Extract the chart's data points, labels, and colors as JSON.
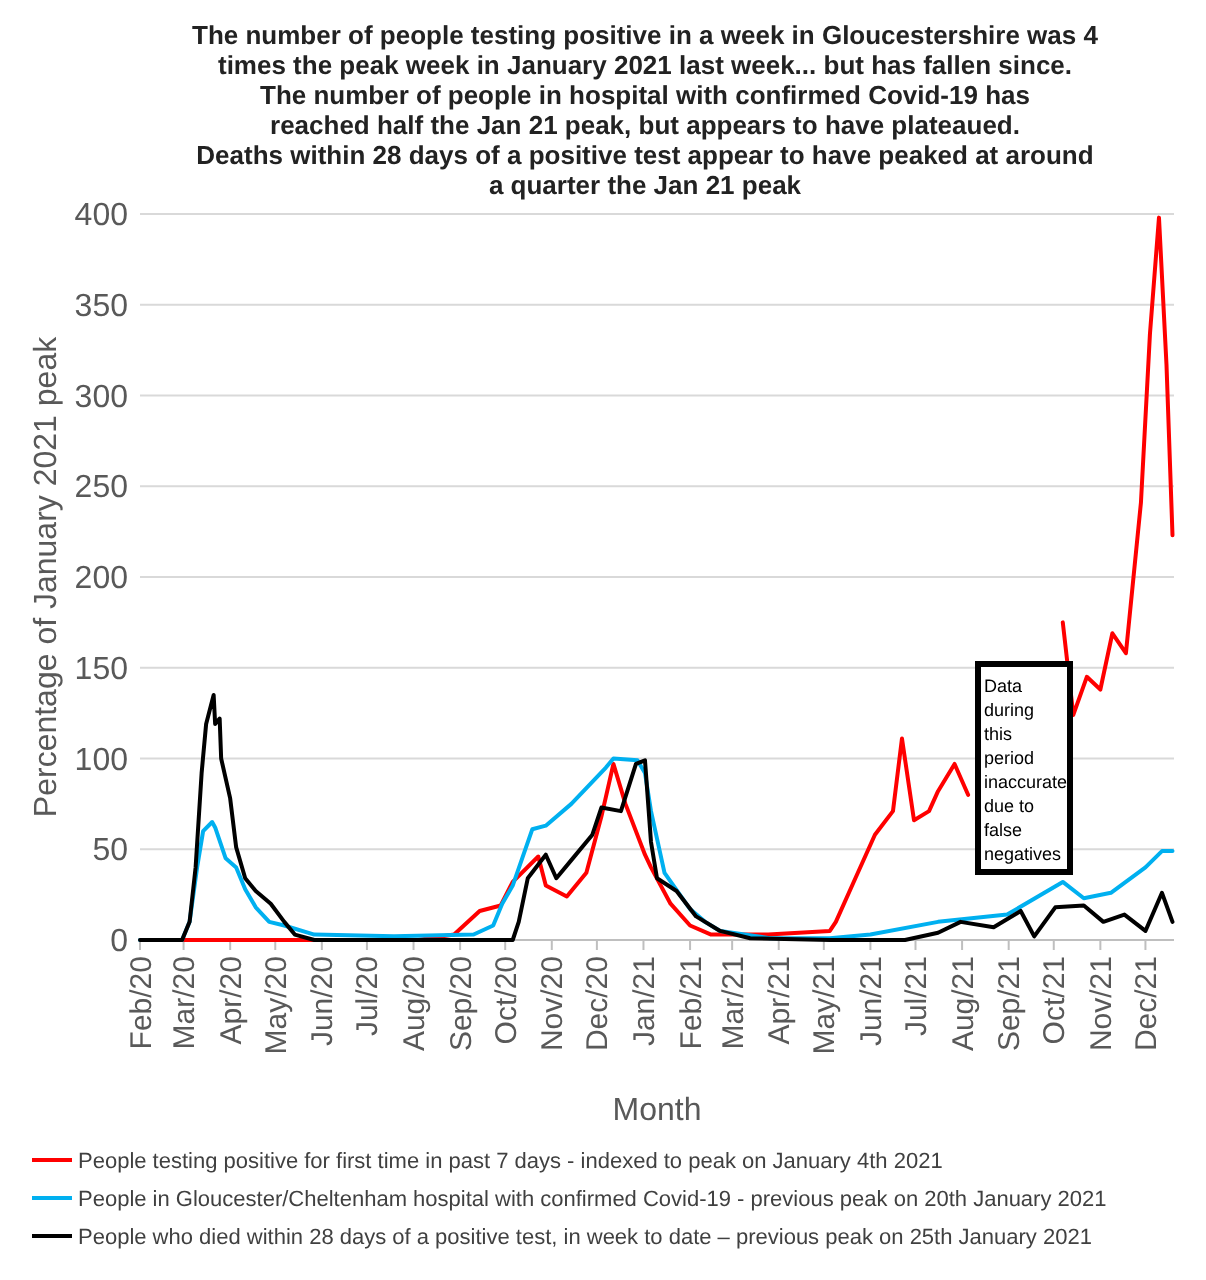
{
  "chart_data": {
    "type": "line",
    "title": "The number of people testing positive in a week in Gloucestershire was 4 times the peak week in January 2021 last week... but has fallen since.",
    "subtitle": "The number of people in hospital with confirmed Covid-19 has reached half the Jan 21 peak, but appears to have plateaued.",
    "xlabel": "Month",
    "ylabel": "Percentage of January 2021 peak",
    "annotations": [
      "Deaths within 28 days of a positive test appear to have peaked at around a quarter the Jan 21 peak",
      "Data during this period inaccurate due to false negatives"
    ],
    "series": [
      {
        "name": "People testing positive for first time in past 7 days - indexed to peak on January 4th 2021",
        "color": "#ff0000",
        "x": [
          "2020-02-29",
          "2020-08-04",
          "2020-08-28",
          "2020-09-14",
          "2020-09-28",
          "2020-10-06",
          "2020-10-23",
          "2020-10-28",
          "2020-11-11",
          "2020-11-24",
          "2020-12-04",
          "2020-12-12",
          "2020-12-20",
          "2021-01-02",
          "2021-01-06",
          "2021-01-19",
          "2021-02-01",
          "2021-02-15",
          "2021-03-25",
          "2021-05-05",
          "2021-05-09",
          "2021-05-22",
          "2021-06-04",
          "2021-06-16",
          "2021-06-22",
          "2021-06-30",
          "2021-07-10",
          "2021-07-16",
          "2021-07-27",
          "2021-08-05",
          "2021-09-05",
          "2021-10-07",
          "2021-10-14",
          "2021-10-23",
          "2021-11-01",
          "2021-11-09",
          "2021-11-18",
          "2021-11-28",
          "2021-12-04",
          "2021-12-10",
          "2021-12-15",
          "2021-12-19"
        ],
        "values": [
          0,
          0,
          3,
          16,
          19,
          32,
          46,
          30,
          24,
          37,
          68,
          97,
          75,
          47,
          40,
          20,
          8,
          3,
          3,
          5,
          10,
          34,
          58,
          71,
          111,
          66,
          71,
          82,
          97,
          80,
          null,
          175,
          124,
          145,
          138,
          169,
          158,
          241,
          334,
          398,
          317,
          223
        ]
      },
      {
        "name": "People in Gloucester/Cheltenham hospital with confirmed Covid-19 - previous peak on 20th January 2021",
        "color": "#00b0f0",
        "x": [
          "2020-02-01",
          "2020-02-29",
          "2020-03-05",
          "2020-03-10",
          "2020-03-14",
          "2020-03-20",
          "2020-03-22",
          "2020-03-29",
          "2020-04-05",
          "2020-04-11",
          "2020-04-18",
          "2020-04-27",
          "2020-05-07",
          "2020-05-27",
          "2020-07-19",
          "2020-09-10",
          "2020-09-23",
          "2020-09-29",
          "2020-10-06",
          "2020-10-19",
          "2020-10-28",
          "2020-11-14",
          "2020-12-07",
          "2020-12-12",
          "2020-12-28",
          "2021-01-02",
          "2021-01-06",
          "2021-01-15",
          "2021-02-01",
          "2021-02-11",
          "2021-02-21",
          "2021-03-26",
          "2021-05-05",
          "2021-06-01",
          "2021-07-16",
          "2021-08-31",
          "2021-10-07",
          "2021-10-21",
          "2021-11-08",
          "2021-12-01",
          "2021-12-12",
          "2021-12-19"
        ],
        "values": [
          0,
          0,
          10,
          40,
          60,
          65,
          62,
          45,
          40,
          28,
          18,
          10,
          8,
          3,
          2,
          3,
          8,
          20,
          30,
          61,
          63,
          75,
          95,
          100,
          99,
          92,
          71,
          37,
          17,
          10,
          5,
          1,
          1,
          3,
          10,
          14,
          32,
          23,
          26,
          40,
          49,
          49
        ]
      },
      {
        "name": "People who died within 28 days of a positive test, in week to date – previous peak on 25th January 2021",
        "color": "#000000",
        "x": [
          "2020-02-01",
          "2020-02-29",
          "2020-03-05",
          "2020-03-09",
          "2020-03-13",
          "2020-03-16",
          "2020-03-21",
          "2020-03-22",
          "2020-03-25",
          "2020-03-26",
          "2020-04-01",
          "2020-04-05",
          "2020-04-11",
          "2020-04-18",
          "2020-04-28",
          "2020-05-07",
          "2020-05-14",
          "2020-05-27",
          "2020-10-06",
          "2020-10-10",
          "2020-10-16",
          "2020-10-28",
          "2020-11-04",
          "2020-11-14",
          "2020-11-28",
          "2020-12-04",
          "2020-12-17",
          "2020-12-27",
          "2021-01-02",
          "2021-01-06",
          "2021-01-10",
          "2021-01-23",
          "2021-02-05",
          "2021-02-21",
          "2021-03-13",
          "2021-05-05",
          "2021-06-24",
          "2021-07-16",
          "2021-07-31",
          "2021-08-22",
          "2021-09-09",
          "2021-09-18",
          "2021-10-02",
          "2021-10-21",
          "2021-11-03",
          "2021-11-17",
          "2021-12-01",
          "2021-12-12",
          "2021-12-19"
        ],
        "values": [
          0,
          0,
          10,
          40,
          92,
          119,
          135,
          119,
          122,
          100,
          78,
          51,
          34,
          27,
          20,
          10,
          3,
          0,
          0,
          10,
          34,
          47,
          34,
          44,
          58,
          73,
          71,
          97,
          99,
          54,
          34,
          27,
          13,
          5,
          1,
          0,
          0,
          4,
          10,
          7,
          16,
          2,
          18,
          19,
          10,
          14,
          5,
          26,
          10
        ]
      }
    ],
    "xlim": [
      "2020-02-01",
      "2021-12-20"
    ],
    "xticks": [
      {
        "value": "2020-02-01",
        "label": "Feb/20"
      },
      {
        "value": "2020-03-01",
        "label": "Mar/20"
      },
      {
        "value": "2020-04-01",
        "label": "Apr/20"
      },
      {
        "value": "2020-05-01",
        "label": "May/20"
      },
      {
        "value": "2020-06-01",
        "label": "Jun/20"
      },
      {
        "value": "2020-07-01",
        "label": "Jul/20"
      },
      {
        "value": "2020-08-01",
        "label": "Aug/20"
      },
      {
        "value": "2020-09-01",
        "label": "Sep/20"
      },
      {
        "value": "2020-10-01",
        "label": "Oct/20"
      },
      {
        "value": "2020-11-01",
        "label": "Nov/20"
      },
      {
        "value": "2020-12-01",
        "label": "Dec/20"
      },
      {
        "value": "2021-01-01",
        "label": "Jan/21"
      },
      {
        "value": "2021-02-01",
        "label": "Feb/21"
      },
      {
        "value": "2021-03-01",
        "label": "Mar/21"
      },
      {
        "value": "2021-04-01",
        "label": "Apr/21"
      },
      {
        "value": "2021-05-01",
        "label": "May/21"
      },
      {
        "value": "2021-06-01",
        "label": "Jun/21"
      },
      {
        "value": "2021-07-01",
        "label": "Jul/21"
      },
      {
        "value": "2021-08-01",
        "label": "Aug/21"
      },
      {
        "value": "2021-09-01",
        "label": "Sep/21"
      },
      {
        "value": "2021-10-01",
        "label": "Oct/21"
      },
      {
        "value": "2021-11-01",
        "label": "Nov/21"
      },
      {
        "value": "2021-12-01",
        "label": "Dec/21"
      }
    ],
    "ylim": [
      0,
      400
    ],
    "yticks": [
      0,
      50,
      100,
      150,
      200,
      250,
      300,
      350,
      400
    ],
    "grid": "y",
    "legend": "bottom",
    "marker": "none",
    "line_style": "solid"
  }
}
